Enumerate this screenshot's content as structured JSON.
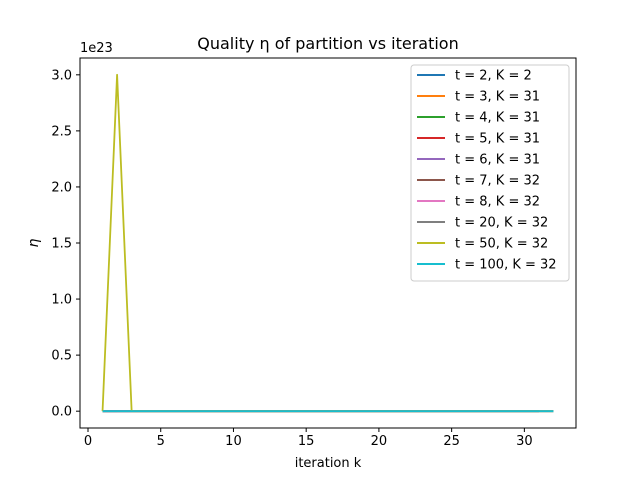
{
  "chart_data": {
    "type": "line",
    "title": "Quality η of partition vs iteration",
    "xlabel": "iteration k",
    "ylabel": "η",
    "y_offset_label": "1e23",
    "xlim": [
      -0.55,
      33.55
    ],
    "ylim": [
      -0.15,
      3.15
    ],
    "x_ticks": [
      0,
      5,
      10,
      15,
      20,
      25,
      30
    ],
    "y_ticks": [
      0.0,
      0.5,
      1.0,
      1.5,
      2.0,
      2.5,
      3.0
    ],
    "y_tick_labels": [
      "0.0",
      "0.5",
      "1.0",
      "1.5",
      "2.0",
      "2.5",
      "3.0"
    ],
    "grid": false,
    "legend_position": "top-right",
    "series": [
      {
        "name": "t = 2, K = 2",
        "color": "#1f77b4",
        "x": [
          1,
          2
        ],
        "y": [
          0,
          0
        ]
      },
      {
        "name": "t = 3, K = 31",
        "color": "#ff7f0e",
        "x": [
          1,
          31
        ],
        "y": [
          0,
          0
        ]
      },
      {
        "name": "t = 4, K = 31",
        "color": "#2ca02c",
        "x": [
          1,
          31
        ],
        "y": [
          0,
          0
        ]
      },
      {
        "name": "t = 5, K = 31",
        "color": "#d62728",
        "x": [
          1,
          31
        ],
        "y": [
          0,
          0
        ]
      },
      {
        "name": "t = 6, K = 31",
        "color": "#9467bd",
        "x": [
          1,
          31
        ],
        "y": [
          0,
          0
        ]
      },
      {
        "name": "t = 7, K = 32",
        "color": "#8c564b",
        "x": [
          1,
          32
        ],
        "y": [
          0,
          0
        ]
      },
      {
        "name": "t = 8, K = 32",
        "color": "#e377c2",
        "x": [
          1,
          32
        ],
        "y": [
          0,
          0
        ]
      },
      {
        "name": "t = 20, K = 32",
        "color": "#7f7f7f",
        "x": [
          1,
          32
        ],
        "y": [
          0,
          0
        ]
      },
      {
        "name": "t = 50, K = 32",
        "color": "#bcbd22",
        "x": [
          1,
          2,
          3,
          4,
          32
        ],
        "y": [
          0,
          3.0,
          0,
          0,
          0
        ]
      },
      {
        "name": "t = 100, K = 32",
        "color": "#17becf",
        "x": [
          1,
          32
        ],
        "y": [
          0,
          0
        ]
      }
    ]
  }
}
